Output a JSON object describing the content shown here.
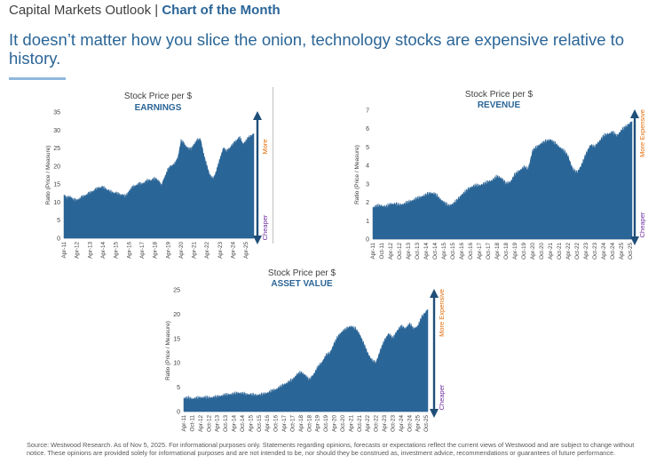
{
  "header": {
    "series_name": "Capital Markets Outlook",
    "separator": "|",
    "highlight": "Chart of the Month"
  },
  "headline": "It doesn’t matter how you slice the onion, technology stocks are expensive relative to history.",
  "footnote": "Source: Westwood Research. As of Nov 5, 2025. For informational purposes only. Statements regarding opinions, forecasts or expectations reflect the current views of Westwood and are subject to change without notice. These opinions are provided solely for informational purposes and are not intended to be, nor should they be construed as, investment advice, recommendations or guarantees of future performance.",
  "colors": {
    "fill": "#2a6597",
    "accent": "#8fb8dd",
    "more_label": "#e36c0a",
    "cheaper_label": "#7030a0",
    "arrow": "#1f4e79"
  },
  "chart_data": [
    {
      "type": "area",
      "subtitle": "Stock Price per $",
      "title": "EARNINGS",
      "ylabel": "Ratio (Price / Measure)",
      "ylim": [
        0,
        35
      ],
      "yticks": [
        0,
        5,
        10,
        15,
        20,
        25,
        30,
        35
      ],
      "xlim": [
        2011.25,
        2025.85
      ],
      "xticks": [
        2011.25,
        2012.25,
        2013.25,
        2014.25,
        2015.25,
        2016.25,
        2017.25,
        2018.25,
        2019.25,
        2020.25,
        2021.25,
        2022.25,
        2023.25,
        2024.25,
        2025.25
      ],
      "xticklabels": [
        "Apr-11",
        "Apr-12",
        "Apr-13",
        "Apr-14",
        "Apr-15",
        "Apr-16",
        "Apr-17",
        "Apr-18",
        "Apr-19",
        "Apr-20",
        "Apr-21",
        "Apr-22",
        "Apr-23",
        "Apr-24",
        "Apr-25"
      ],
      "x": [
        2011.25,
        2011.5,
        2011.75,
        2012.0,
        2012.25,
        2012.5,
        2012.75,
        2013.0,
        2013.25,
        2013.5,
        2013.75,
        2014.0,
        2014.25,
        2014.5,
        2014.75,
        2015.0,
        2015.25,
        2015.5,
        2015.75,
        2016.0,
        2016.25,
        2016.5,
        2016.75,
        2017.0,
        2017.25,
        2017.5,
        2017.75,
        2018.0,
        2018.25,
        2018.5,
        2018.75,
        2019.0,
        2019.25,
        2019.5,
        2019.75,
        2020.0,
        2020.25,
        2020.5,
        2020.75,
        2021.0,
        2021.25,
        2021.5,
        2021.75,
        2022.0,
        2022.25,
        2022.5,
        2022.75,
        2023.0,
        2023.25,
        2023.5,
        2023.75,
        2024.0,
        2024.25,
        2024.5,
        2024.75,
        2025.0,
        2025.25,
        2025.5,
        2025.85
      ],
      "y": [
        12,
        11,
        11.5,
        10.5,
        10.5,
        11,
        11.5,
        12,
        12.5,
        13,
        13.5,
        14,
        14,
        13.5,
        13,
        12.5,
        12.5,
        12,
        12,
        11.5,
        13,
        14,
        14.5,
        15,
        15,
        15.5,
        16,
        16,
        16.5,
        16,
        14.5,
        17,
        19,
        20,
        20.5,
        22,
        27,
        26,
        25,
        24.5,
        26,
        27,
        27.5,
        23,
        20,
        17,
        16.5,
        19,
        22,
        25,
        24,
        25,
        26,
        27,
        28,
        26,
        27,
        28,
        29
      ],
      "more_label": "More",
      "less_label": "Cheaper"
    },
    {
      "type": "area",
      "subtitle": "Stock Price per $",
      "title": "REVENUE",
      "ylabel": "Ratio (Price / Measure)",
      "ylim": [
        0,
        7
      ],
      "yticks": [
        0,
        1,
        2,
        3,
        4,
        5,
        6,
        7
      ],
      "xlim": [
        2011.25,
        2025.85
      ],
      "xticks": [
        2011.25,
        2011.75,
        2012.25,
        2012.75,
        2013.25,
        2013.75,
        2014.25,
        2014.75,
        2015.25,
        2015.75,
        2016.25,
        2016.75,
        2017.25,
        2017.75,
        2018.25,
        2018.75,
        2019.25,
        2019.75,
        2020.25,
        2020.75,
        2021.25,
        2021.75,
        2022.25,
        2022.75,
        2023.25,
        2023.75,
        2024.25,
        2024.75,
        2025.25,
        2025.75
      ],
      "xticklabels": [
        "Apr-11",
        "Oct-11",
        "Apr-12",
        "Oct-12",
        "Apr-13",
        "Oct-13",
        "Apr-14",
        "Oct-14",
        "Apr-15",
        "Oct-15",
        "Apr-16",
        "Oct-16",
        "Apr-17",
        "Oct-17",
        "Apr-18",
        "Oct-18",
        "Apr-19",
        "Oct-19",
        "Apr-20",
        "Oct-20",
        "Apr-21",
        "Oct-21",
        "Apr-22",
        "Oct-22",
        "Apr-23",
        "Oct-23",
        "Apr-24",
        "Oct-24",
        "Apr-25",
        "Oct-25"
      ],
      "x": [
        2011.25,
        2011.5,
        2011.75,
        2012.0,
        2012.25,
        2012.5,
        2012.75,
        2013.0,
        2013.25,
        2013.5,
        2013.75,
        2014.0,
        2014.25,
        2014.5,
        2014.75,
        2015.0,
        2015.25,
        2015.5,
        2015.75,
        2016.0,
        2016.25,
        2016.5,
        2016.75,
        2017.0,
        2017.25,
        2017.5,
        2017.75,
        2018.0,
        2018.25,
        2018.5,
        2018.75,
        2019.0,
        2019.25,
        2019.5,
        2019.75,
        2020.0,
        2020.25,
        2020.5,
        2020.75,
        2021.0,
        2021.25,
        2021.5,
        2021.75,
        2022.0,
        2022.25,
        2022.5,
        2022.75,
        2023.0,
        2023.25,
        2023.5,
        2023.75,
        2024.0,
        2024.25,
        2024.5,
        2024.75,
        2025.0,
        2025.25,
        2025.5,
        2025.85
      ],
      "y": [
        1.7,
        1.8,
        1.8,
        1.75,
        1.9,
        1.9,
        1.85,
        1.9,
        2.0,
        2.1,
        2.2,
        2.3,
        2.4,
        2.5,
        2.45,
        2.2,
        2.0,
        1.8,
        1.9,
        2.1,
        2.4,
        2.6,
        2.8,
        2.9,
        2.9,
        3.0,
        3.1,
        3.2,
        3.4,
        3.3,
        3.0,
        3.1,
        3.5,
        3.7,
        3.9,
        3.8,
        4.8,
        5.0,
        5.2,
        5.3,
        5.4,
        5.2,
        5.0,
        4.8,
        4.5,
        3.8,
        3.6,
        4.0,
        4.6,
        5.1,
        5.0,
        5.3,
        5.6,
        5.7,
        5.8,
        5.6,
        5.9,
        6.1,
        6.4
      ],
      "more_label": "More Expensive",
      "less_label": "Cheaper"
    },
    {
      "type": "area",
      "subtitle": "Stock Price per $",
      "title": "ASSET VALUE",
      "ylabel": "Ratio (Price / Measure)",
      "ylim": [
        0,
        25
      ],
      "yticks": [
        0,
        5,
        10,
        15,
        20,
        25
      ],
      "xlim": [
        2011.25,
        2025.85
      ],
      "xticks": [
        2011.25,
        2011.75,
        2012.25,
        2012.75,
        2013.25,
        2013.75,
        2014.25,
        2014.75,
        2015.25,
        2015.75,
        2016.25,
        2016.75,
        2017.25,
        2017.75,
        2018.25,
        2018.75,
        2019.25,
        2019.75,
        2020.25,
        2020.75,
        2021.25,
        2021.75,
        2022.25,
        2022.75,
        2023.25,
        2023.75,
        2024.25,
        2024.75,
        2025.25,
        2025.75
      ],
      "xticklabels": [
        "Apr-11",
        "Oct-11",
        "Apr-12",
        "Oct-12",
        "Apr-13",
        "Oct-13",
        "Apr-14",
        "Oct-14",
        "Apr-15",
        "Oct-15",
        "Apr-16",
        "Oct-16",
        "Apr-17",
        "Oct-17",
        "Apr-18",
        "Oct-18",
        "Apr-19",
        "Oct-19",
        "Apr-20",
        "Oct-20",
        "Apr-21",
        "Oct-21",
        "Apr-22",
        "Oct-22",
        "Apr-23",
        "Oct-23",
        "Apr-24",
        "Oct-24",
        "Apr-25",
        "Oct-25"
      ],
      "x": [
        2011.25,
        2011.5,
        2011.75,
        2012.0,
        2012.25,
        2012.5,
        2012.75,
        2013.0,
        2013.25,
        2013.5,
        2013.75,
        2014.0,
        2014.25,
        2014.5,
        2014.75,
        2015.0,
        2015.25,
        2015.5,
        2015.75,
        2016.0,
        2016.25,
        2016.5,
        2016.75,
        2017.0,
        2017.25,
        2017.5,
        2017.75,
        2018.0,
        2018.25,
        2018.5,
        2018.75,
        2019.0,
        2019.25,
        2019.5,
        2019.75,
        2020.0,
        2020.25,
        2020.5,
        2020.75,
        2021.0,
        2021.25,
        2021.5,
        2021.75,
        2022.0,
        2022.25,
        2022.5,
        2022.75,
        2023.0,
        2023.25,
        2023.5,
        2023.75,
        2024.0,
        2024.25,
        2024.5,
        2024.75,
        2025.0,
        2025.25,
        2025.5,
        2025.85
      ],
      "y": [
        2.7,
        2.8,
        2.6,
        2.7,
        2.8,
        2.9,
        2.8,
        2.9,
        3.0,
        3.2,
        3.4,
        3.5,
        3.6,
        3.8,
        3.7,
        3.5,
        3.5,
        3.3,
        3.4,
        3.5,
        3.8,
        4.2,
        4.5,
        5.0,
        5.5,
        6.0,
        6.5,
        7.5,
        8.0,
        7.5,
        6.5,
        7.5,
        9.0,
        10.0,
        11.5,
        12.0,
        14.0,
        15.5,
        16.5,
        17.0,
        17.5,
        17.0,
        16.0,
        14.0,
        12.0,
        10.5,
        10.0,
        12.5,
        14.5,
        16.0,
        15.0,
        16.5,
        17.5,
        17.0,
        18.0,
        17.0,
        17.5,
        19.5,
        21.0
      ],
      "more_label": "More Expensive",
      "less_label": "Cheaper"
    }
  ]
}
